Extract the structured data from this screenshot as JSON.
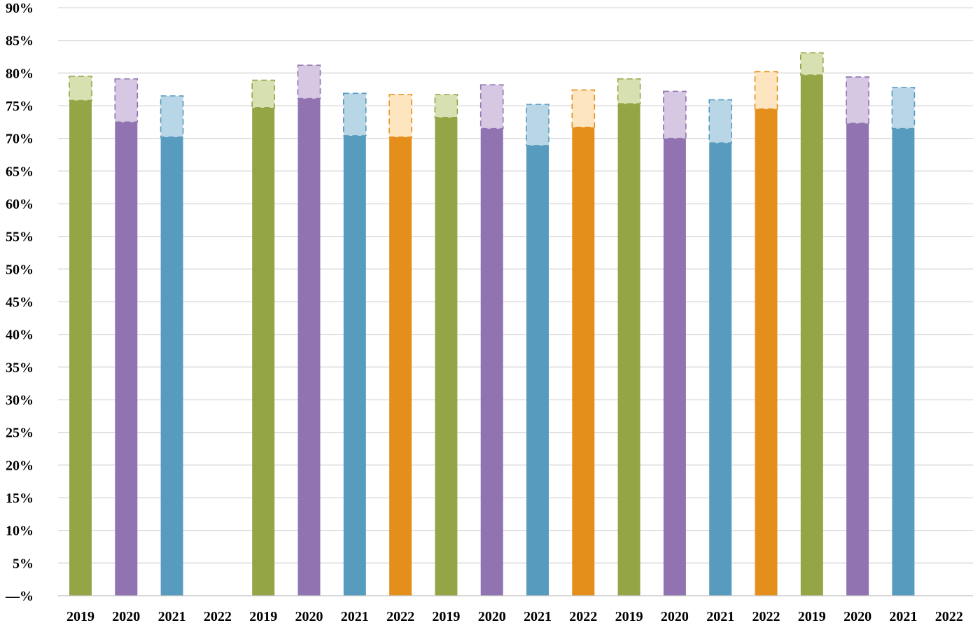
{
  "chart_data": {
    "type": "bar",
    "title": "",
    "xlabel": "",
    "ylabel": "",
    "ylim": [
      0,
      90
    ],
    "y_ticks": [
      0,
      5,
      10,
      15,
      20,
      25,
      30,
      35,
      40,
      45,
      50,
      55,
      60,
      65,
      70,
      75,
      80,
      85,
      90
    ],
    "y_tick_labels": [
      "—%",
      "5%",
      "10%",
      "15%",
      "20%",
      "25%",
      "30%",
      "35%",
      "40%",
      "45%",
      "50%",
      "55%",
      "60%",
      "65%",
      "70%",
      "75%",
      "80%",
      "85%",
      "90%"
    ],
    "grid": true,
    "legend": "none",
    "groups": 5,
    "categories": [
      "2019",
      "2020",
      "2021",
      "2022",
      "2019",
      "2020",
      "2021",
      "2022",
      "2019",
      "2020",
      "2021",
      "2022",
      "2019",
      "2020",
      "2021",
      "2022",
      "2019",
      "2020",
      "2021",
      "2022"
    ],
    "values": [
      75.8,
      72.5,
      70.2,
      null,
      74.7,
      76.1,
      70.4,
      70.2,
      73.2,
      71.5,
      68.9,
      71.7,
      75.3,
      70.0,
      69.3,
      74.5,
      79.7,
      72.3,
      71.5,
      null
    ],
    "range_upper": [
      79.5,
      79.1,
      76.5,
      null,
      78.9,
      81.2,
      76.9,
      76.7,
      76.7,
      78.2,
      75.2,
      77.4,
      79.1,
      77.2,
      75.9,
      80.2,
      83.1,
      79.4,
      77.8,
      null
    ],
    "year_colors": {
      "2019": {
        "fill": "#94a545",
        "range_fill": "#d7e0b1",
        "range_stroke": "#94a545"
      },
      "2020": {
        "fill": "#9173b2",
        "range_fill": "#d6c8e3",
        "range_stroke": "#9173b2"
      },
      "2021": {
        "fill": "#579bbf",
        "range_fill": "#b9d6e6",
        "range_stroke": "#579bbf"
      },
      "2022": {
        "fill": "#e48f1c",
        "range_fill": "#fde5c0",
        "range_stroke": "#e48f1c"
      }
    }
  }
}
